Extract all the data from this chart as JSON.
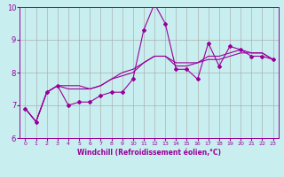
{
  "title": "",
  "xlabel": "Windchill (Refroidissement éolien,°C)",
  "bg_color": "#c8eef0",
  "line_color": "#990099",
  "grid_color": "#aaaaaa",
  "xmin": 0,
  "xmax": 23,
  "ymin": 6,
  "ymax": 10,
  "series_x": [
    0,
    1,
    2,
    3,
    4,
    5,
    6,
    7,
    8,
    9,
    10,
    11,
    12,
    13,
    14,
    15,
    16,
    17,
    18,
    19,
    20,
    21,
    22,
    23
  ],
  "series_raw": [
    6.9,
    6.5,
    7.4,
    7.6,
    7.0,
    7.1,
    7.1,
    7.3,
    7.4,
    7.4,
    7.8,
    9.3,
    10.1,
    9.5,
    8.1,
    8.1,
    7.8,
    8.9,
    8.2,
    8.8,
    8.7,
    8.5,
    8.5,
    8.4
  ],
  "series_smooth1": [
    6.9,
    6.5,
    7.4,
    7.6,
    7.6,
    7.6,
    7.5,
    7.6,
    7.8,
    7.9,
    8.0,
    8.3,
    8.5,
    8.5,
    8.2,
    8.2,
    8.3,
    8.4,
    8.4,
    8.5,
    8.6,
    8.6,
    8.6,
    8.4
  ],
  "series_smooth2": [
    6.9,
    6.5,
    7.4,
    7.6,
    7.5,
    7.5,
    7.5,
    7.6,
    7.8,
    8.0,
    8.1,
    8.3,
    8.5,
    8.5,
    8.3,
    8.3,
    8.3,
    8.5,
    8.5,
    8.6,
    8.7,
    8.6,
    8.6,
    8.4
  ],
  "yticks": [
    6,
    7,
    8,
    9,
    10
  ],
  "marker": "D",
  "markersize": 2.0,
  "linewidth": 0.8,
  "xlabel_fontsize": 5.5,
  "xtick_fontsize": 4.5,
  "ytick_fontsize": 6.0
}
